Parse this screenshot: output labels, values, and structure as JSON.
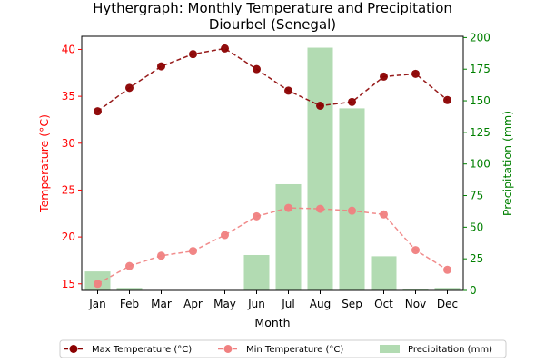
{
  "chart_data": {
    "type": "bar+line",
    "title_line1": "Hythergraph: Monthly Temperature and Precipitation",
    "title_line2": "Diourbel (Senegal)",
    "xlabel": "Month",
    "ylabel_left": "Temperature (°C)",
    "ylabel_right": "Precipitation (mm)",
    "categories": [
      "Jan",
      "Feb",
      "Mar",
      "Apr",
      "May",
      "Jun",
      "Jul",
      "Aug",
      "Sep",
      "Oct",
      "Nov",
      "Dec"
    ],
    "ylim_left": [
      14.3,
      41.4
    ],
    "yticks_left": [
      15,
      20,
      25,
      30,
      35,
      40
    ],
    "ylim_right": [
      0,
      201
    ],
    "yticks_right": [
      0,
      25,
      50,
      75,
      100,
      125,
      150,
      175,
      200
    ],
    "series": [
      {
        "name": "Max Temperature (°C)",
        "kind": "line",
        "axis": "left",
        "color": "#8b0000",
        "values": [
          33.4,
          35.9,
          38.2,
          39.5,
          40.1,
          37.9,
          35.6,
          34.0,
          34.4,
          37.1,
          37.4,
          34.6
        ]
      },
      {
        "name": "Min Temperature (°C)",
        "kind": "line",
        "axis": "left",
        "color": "#f08080",
        "values": [
          15.0,
          16.9,
          18.0,
          18.5,
          20.2,
          22.2,
          23.1,
          23.0,
          22.8,
          22.4,
          18.6,
          16.5
        ]
      },
      {
        "name": "Precipitation (mm)",
        "kind": "bar",
        "axis": "right",
        "color": "#b2dbb2",
        "values": [
          15,
          2,
          0,
          0,
          0,
          28,
          84,
          192,
          144,
          27,
          1,
          2
        ]
      }
    ],
    "left_axis_color": "#ff0000",
    "right_axis_color": "#008000",
    "grid": false,
    "legend_placement": "bottom-center"
  }
}
